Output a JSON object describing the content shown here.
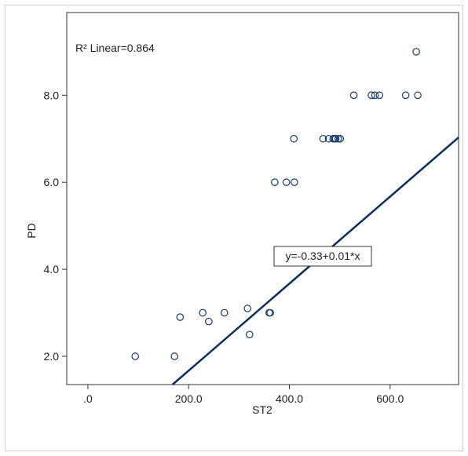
{
  "chart_data": {
    "type": "scatter",
    "xlabel": "ST2",
    "ylabel": "PD",
    "xlim": [
      -42,
      736
    ],
    "ylim": [
      1.35,
      9.9
    ],
    "x_ticks": [
      0,
      200,
      400,
      600
    ],
    "x_tick_labels": [
      ".0",
      "200.0",
      "400.0",
      "600.0"
    ],
    "y_ticks": [
      2,
      4,
      6,
      8
    ],
    "y_tick_labels": [
      "2.0",
      "4.0",
      "6.0",
      "8.0"
    ],
    "grid": false,
    "annotations": {
      "r2": "R² Linear=0.864",
      "equation": "y=-0.33+0.01*x"
    },
    "fit_line": {
      "intercept": -0.33,
      "slope": 0.01
    },
    "points": [
      [
        94,
        2.0
      ],
      [
        172,
        2.0
      ],
      [
        183,
        2.9
      ],
      [
        228,
        3.0
      ],
      [
        240,
        2.8
      ],
      [
        271,
        3.0
      ],
      [
        317,
        3.1
      ],
      [
        321,
        2.5
      ],
      [
        360,
        3.0
      ],
      [
        362,
        3.0
      ],
      [
        371,
        6.0
      ],
      [
        394,
        6.0
      ],
      [
        410,
        6.0
      ],
      [
        409,
        7.0
      ],
      [
        467,
        7.0
      ],
      [
        478,
        7.0
      ],
      [
        487,
        7.0
      ],
      [
        490,
        7.0
      ],
      [
        492,
        7.0
      ],
      [
        497,
        7.0
      ],
      [
        501,
        7.0
      ],
      [
        528,
        8.0
      ],
      [
        563,
        8.0
      ],
      [
        570,
        8.0
      ],
      [
        579,
        8.0
      ],
      [
        631,
        8.0
      ],
      [
        655,
        8.0
      ],
      [
        652,
        9.0
      ]
    ],
    "colors": {
      "marker": "#123a6b",
      "line": "#0d2d5e",
      "axis": "#333333"
    }
  }
}
